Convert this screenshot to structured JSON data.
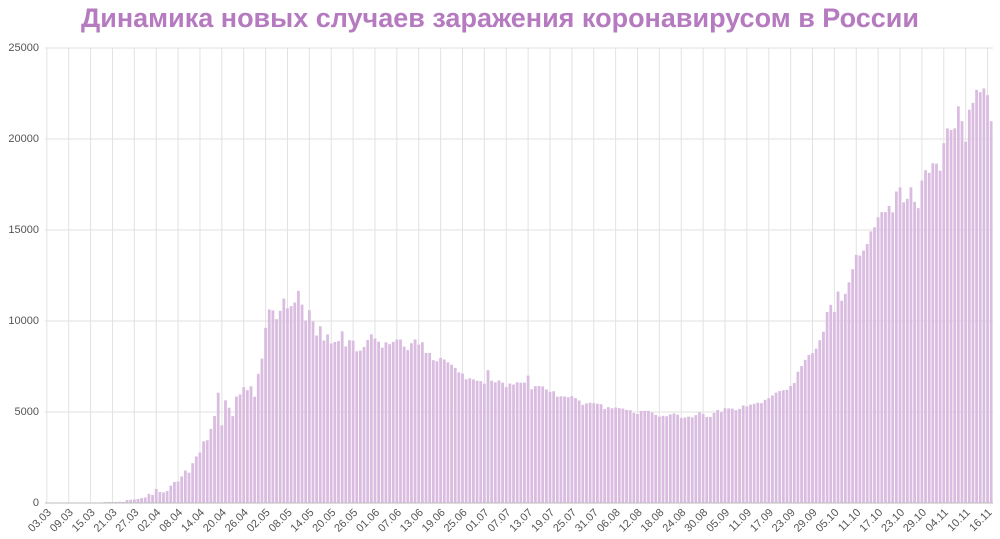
{
  "chart_data": {
    "type": "bar",
    "title": "Динамика новых случаев заражения коронавирусом в России",
    "categories": [
      "03.03",
      null,
      null,
      null,
      null,
      null,
      "09.03",
      null,
      null,
      null,
      null,
      null,
      "15.03",
      null,
      null,
      null,
      null,
      null,
      "21.03",
      null,
      null,
      null,
      null,
      null,
      "27.03",
      null,
      null,
      null,
      null,
      null,
      "02.04",
      null,
      null,
      null,
      null,
      null,
      "08.04",
      null,
      null,
      null,
      null,
      null,
      "14.04",
      null,
      null,
      null,
      null,
      null,
      "20.04",
      null,
      null,
      null,
      null,
      null,
      "26.04",
      null,
      null,
      null,
      null,
      null,
      "02.05",
      null,
      null,
      null,
      null,
      null,
      "08.05",
      null,
      null,
      null,
      null,
      null,
      "14.05",
      null,
      null,
      null,
      null,
      null,
      "20.05",
      null,
      null,
      null,
      null,
      null,
      "26.05",
      null,
      null,
      null,
      null,
      null,
      "01.06",
      null,
      null,
      null,
      null,
      null,
      "07.06",
      null,
      null,
      null,
      null,
      null,
      "13.06",
      null,
      null,
      null,
      null,
      null,
      "19.06",
      null,
      null,
      null,
      null,
      null,
      "25.06",
      null,
      null,
      null,
      null,
      null,
      "01.07",
      null,
      null,
      null,
      null,
      null,
      "07.07",
      null,
      null,
      null,
      null,
      null,
      "13.07",
      null,
      null,
      null,
      null,
      null,
      "19.07",
      null,
      null,
      null,
      null,
      null,
      "25.07",
      null,
      null,
      null,
      null,
      null,
      "31.07",
      null,
      null,
      null,
      null,
      null,
      "06.08",
      null,
      null,
      null,
      null,
      null,
      "12.08",
      null,
      null,
      null,
      null,
      null,
      "18.08",
      null,
      null,
      null,
      null,
      null,
      "24.08",
      null,
      null,
      null,
      null,
      null,
      "30.08",
      null,
      null,
      null,
      null,
      null,
      "05.09",
      null,
      null,
      null,
      null,
      null,
      "11.09",
      null,
      null,
      null,
      null,
      null,
      "17.09",
      null,
      null,
      null,
      null,
      null,
      "23.09",
      null,
      null,
      null,
      null,
      null,
      "29.09",
      null,
      null,
      null,
      null,
      null,
      "05.10",
      null,
      null,
      null,
      null,
      null,
      "11.10",
      null,
      null,
      null,
      null,
      null,
      "17.10",
      null,
      null,
      null,
      null,
      null,
      "23.10",
      null,
      null,
      null,
      null,
      null,
      "29.10",
      null,
      null,
      null,
      null,
      null,
      "04.11",
      null,
      null,
      null,
      null,
      null,
      "10.11",
      null,
      null,
      null,
      null,
      null,
      "16.11",
      null
    ],
    "values": [
      0,
      1,
      0,
      1,
      10,
      0,
      3,
      3,
      8,
      6,
      17,
      11,
      4,
      30,
      21,
      33,
      52,
      54,
      53,
      61,
      71,
      57,
      163,
      182,
      196,
      228,
      270,
      302,
      500,
      440,
      771,
      601,
      582,
      658,
      954,
      1154,
      1175,
      1459,
      1786,
      1667,
      2186,
      2558,
      2774,
      3388,
      3448,
      4070,
      4785,
      6060,
      4268,
      5642,
      5236,
      4774,
      5849,
      5966,
      6361,
      6198,
      6411,
      5841,
      7099,
      7933,
      9623,
      10633,
      10581,
      10102,
      10559,
      11231,
      10699,
      10817,
      11012,
      11656,
      10899,
      10028,
      10598,
      9974,
      9200,
      9709,
      8926,
      9263,
      8764,
      8849,
      8894,
      9434,
      8599,
      8946,
      8915,
      8338,
      8371,
      8572,
      8952,
      9268,
      9035,
      8863,
      8536,
      8831,
      8726,
      8855,
      8984,
      8985,
      8595,
      8404,
      8779,
      8987,
      8706,
      8835,
      8246,
      8248,
      7843,
      7790,
      7972,
      7889,
      7728,
      7600,
      7425,
      7176,
      7113,
      6800,
      6852,
      6791,
      6719,
      6693,
      6556,
      7300,
      6718,
      6632,
      6736,
      6611,
      6368,
      6562,
      6509,
      6635,
      6611,
      6615,
      7000,
      6248,
      6422,
      6428,
      6406,
      6234,
      6109,
      6139,
      5842,
      5862,
      5848,
      5811,
      5871,
      5765,
      5635,
      5395,
      5475,
      5509,
      5482,
      5462,
      5427,
      5159,
      5267,
      5204,
      5241,
      5212,
      5189,
      5118,
      5102,
      4945,
      4892,
      5057,
      5065,
      5061,
      4969,
      4839,
      4748,
      4790,
      4767,
      4870,
      4921,
      4852,
      4676,
      4696,
      4744,
      4711,
      4829,
      4980,
      4897,
      4729,
      4729,
      4952,
      5110,
      4995,
      5205,
      5195,
      5185,
      5099,
      5172,
      5363,
      5310,
      5406,
      5449,
      5509,
      5488,
      5670,
      5762,
      5905,
      6065,
      6148,
      6196,
      6215,
      6431,
      6595,
      7212,
      7523,
      7867,
      8135,
      8232,
      8481,
      8945,
      9412,
      10499,
      10888,
      10499,
      11615,
      11115,
      11493,
      12126,
      12846,
      13634,
      13592,
      13868,
      14231,
      14922,
      15150,
      15700,
      15982,
      15982,
      16319,
      15971,
      17115,
      17340,
      16521,
      16710,
      17347,
      16550,
      16202,
      17717,
      18283,
      18140,
      18665,
      18648,
      18257,
      19768,
      20582,
      20498,
      20582,
      21798,
      20977,
      19851,
      21608,
      21983,
      22702,
      22572,
      22778,
      22410,
      20977
    ],
    "color": "#d9bce0",
    "ylim": [
      0,
      25000
    ],
    "yticks": [
      0,
      5000,
      10000,
      15000,
      20000,
      25000
    ],
    "grid": true
  }
}
